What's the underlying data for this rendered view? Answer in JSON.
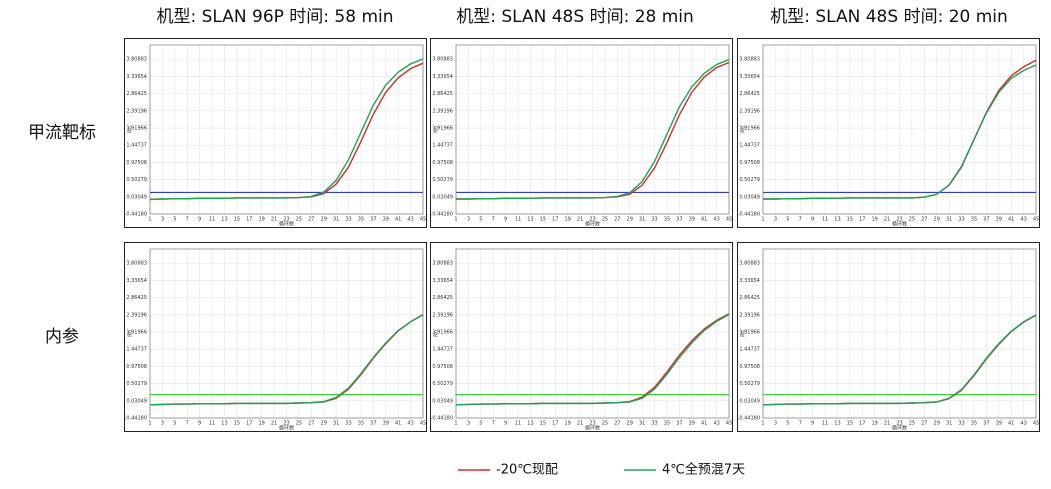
{
  "column_titles": [
    "机型: SLAN 96P  时间: 58 min",
    "机型: SLAN 48S  时间: 28 min",
    "机型: SLAN 48S  时间: 20 min"
  ],
  "row_labels": [
    "甲流靶标",
    "内参"
  ],
  "chart_data": [
    {
      "type": "line",
      "xlabel": "循环数",
      "ylabel": "Rn",
      "grid": true,
      "x": [
        1,
        3,
        5,
        7,
        9,
        11,
        13,
        15,
        17,
        19,
        21,
        23,
        25,
        27,
        29,
        31,
        33,
        35,
        37,
        39,
        41,
        43,
        45
      ],
      "xlim": [
        1,
        45
      ],
      "xticks": [
        1,
        3,
        5,
        7,
        9,
        11,
        13,
        15,
        17,
        19,
        21,
        23,
        25,
        27,
        29,
        31,
        33,
        35,
        37,
        39,
        41,
        43,
        45
      ],
      "ylim": [
        -0.4418,
        4.2
      ],
      "yticks": [
        {
          "value": -0.4418,
          "label": "-0.44180"
        },
        0.03049,
        0.50279,
        0.97508,
        1.44737,
        1.91966,
        2.39196,
        2.86425,
        3.33654,
        3.80883
      ],
      "threshold": {
        "value": 0.15,
        "color": "#2b3fc8"
      },
      "series": [
        {
          "name": "-20℃现配",
          "color": "#d62a2a",
          "values": [
            -0.04,
            -0.03,
            -0.02,
            -0.02,
            -0.01,
            -0.01,
            -0.01,
            0,
            0,
            0,
            0,
            0,
            0.01,
            0.03,
            0.12,
            0.38,
            0.85,
            1.55,
            2.3,
            2.9,
            3.3,
            3.55,
            3.7
          ]
        },
        {
          "name": "4℃全预混7天",
          "color": "#22a05a",
          "values": [
            -0.04,
            -0.03,
            -0.02,
            -0.02,
            -0.01,
            -0.01,
            -0.01,
            0,
            0,
            0,
            0,
            0,
            0.01,
            0.04,
            0.16,
            0.48,
            1.05,
            1.8,
            2.55,
            3.1,
            3.45,
            3.68,
            3.82
          ]
        }
      ]
    },
    {
      "type": "line",
      "xlabel": "循环数",
      "ylabel": "Rn",
      "grid": true,
      "x": [
        1,
        3,
        5,
        7,
        9,
        11,
        13,
        15,
        17,
        19,
        21,
        23,
        25,
        27,
        29,
        31,
        33,
        35,
        37,
        39,
        41,
        43,
        45
      ],
      "xlim": [
        1,
        45
      ],
      "xticks": [
        1,
        3,
        5,
        7,
        9,
        11,
        13,
        15,
        17,
        19,
        21,
        23,
        25,
        27,
        29,
        31,
        33,
        35,
        37,
        39,
        41,
        43,
        45
      ],
      "ylim": [
        -0.4418,
        4.2
      ],
      "yticks": [
        {
          "value": -0.4418,
          "label": "-0.44180"
        },
        0.03049,
        0.50279,
        0.97508,
        1.44737,
        1.91966,
        2.39196,
        2.86425,
        3.33654,
        3.80883
      ],
      "threshold": {
        "value": 0.15,
        "color": "#2b3fc8"
      },
      "series": [
        {
          "name": "-20℃现配",
          "color": "#d62a2a",
          "values": [
            -0.03,
            -0.03,
            -0.02,
            -0.02,
            -0.01,
            -0.01,
            -0.01,
            0,
            0,
            0,
            0,
            0,
            0.01,
            0.03,
            0.1,
            0.35,
            0.82,
            1.52,
            2.28,
            2.9,
            3.32,
            3.58,
            3.72
          ]
        },
        {
          "name": "4℃全预混7天",
          "color": "#22a05a",
          "values": [
            -0.03,
            -0.03,
            -0.02,
            -0.02,
            -0.01,
            -0.01,
            -0.01,
            0,
            0,
            0,
            0,
            0,
            0.01,
            0.04,
            0.14,
            0.45,
            1.0,
            1.75,
            2.5,
            3.05,
            3.42,
            3.66,
            3.8
          ]
        }
      ]
    },
    {
      "type": "line",
      "xlabel": "循环数",
      "ylabel": "Rn",
      "grid": true,
      "x": [
        1,
        3,
        5,
        7,
        9,
        11,
        13,
        15,
        17,
        19,
        21,
        23,
        25,
        27,
        29,
        31,
        33,
        35,
        37,
        39,
        41,
        43,
        45
      ],
      "xlim": [
        1,
        45
      ],
      "xticks": [
        1,
        3,
        5,
        7,
        9,
        11,
        13,
        15,
        17,
        19,
        21,
        23,
        25,
        27,
        29,
        31,
        33,
        35,
        37,
        39,
        41,
        43,
        45
      ],
      "ylim": [
        -0.4418,
        4.2
      ],
      "yticks": [
        {
          "value": -0.4418,
          "label": "-0.44180"
        },
        0.03049,
        0.50279,
        0.97508,
        1.44737,
        1.91966,
        2.39196,
        2.86425,
        3.33654,
        3.80883
      ],
      "threshold": {
        "value": 0.15,
        "color": "#2b3fc8"
      },
      "series": [
        {
          "name": "-20℃现配",
          "color": "#d62a2a",
          "values": [
            -0.03,
            -0.03,
            -0.02,
            -0.02,
            -0.01,
            -0.01,
            -0.01,
            0,
            0,
            0,
            0,
            0,
            0,
            0.02,
            0.1,
            0.35,
            0.85,
            1.6,
            2.35,
            2.95,
            3.35,
            3.6,
            3.78
          ]
        },
        {
          "name": "4℃全预混7天",
          "color": "#22a05a",
          "values": [
            -0.03,
            -0.03,
            -0.02,
            -0.02,
            -0.01,
            -0.01,
            -0.01,
            0,
            0,
            0,
            0,
            0,
            0,
            0.02,
            0.1,
            0.36,
            0.87,
            1.6,
            2.33,
            2.9,
            3.28,
            3.5,
            3.65
          ]
        }
      ]
    },
    {
      "type": "line",
      "xlabel": "循环数",
      "ylabel": "Rn",
      "grid": true,
      "x": [
        1,
        3,
        5,
        7,
        9,
        11,
        13,
        15,
        17,
        19,
        21,
        23,
        25,
        27,
        29,
        31,
        33,
        35,
        37,
        39,
        41,
        43,
        45
      ],
      "xlim": [
        1,
        45
      ],
      "xticks": [
        1,
        3,
        5,
        7,
        9,
        11,
        13,
        15,
        17,
        19,
        21,
        23,
        25,
        27,
        29,
        31,
        33,
        35,
        37,
        39,
        41,
        43,
        45
      ],
      "ylim": [
        -0.4418,
        4.2
      ],
      "yticks": [
        {
          "value": -0.4418,
          "label": "-0.44180"
        },
        0.03049,
        0.50279,
        0.97508,
        1.44737,
        1.91966,
        2.39196,
        2.86425,
        3.33654,
        3.80883
      ],
      "threshold": {
        "value": 0.2,
        "color": "#3ccc3c"
      },
      "series": [
        {
          "name": "-20℃现配",
          "color": "#d62a2a",
          "values": [
            -0.08,
            -0.07,
            -0.06,
            -0.06,
            -0.05,
            -0.05,
            -0.05,
            -0.04,
            -0.04,
            -0.04,
            -0.04,
            -0.04,
            -0.03,
            -0.02,
            0,
            0.1,
            0.35,
            0.75,
            1.2,
            1.6,
            1.95,
            2.2,
            2.4
          ]
        },
        {
          "name": "4℃全预混7天",
          "color": "#22a05a",
          "values": [
            -0.08,
            -0.07,
            -0.06,
            -0.06,
            -0.05,
            -0.05,
            -0.05,
            -0.04,
            -0.04,
            -0.04,
            -0.04,
            -0.04,
            -0.03,
            -0.02,
            0.01,
            0.12,
            0.38,
            0.78,
            1.22,
            1.62,
            1.96,
            2.2,
            2.39
          ]
        }
      ]
    },
    {
      "type": "line",
      "xlabel": "循环数",
      "ylabel": "Rn",
      "grid": true,
      "x": [
        1,
        3,
        5,
        7,
        9,
        11,
        13,
        15,
        17,
        19,
        21,
        23,
        25,
        27,
        29,
        31,
        33,
        35,
        37,
        39,
        41,
        43,
        45
      ],
      "xlim": [
        1,
        45
      ],
      "xticks": [
        1,
        3,
        5,
        7,
        9,
        11,
        13,
        15,
        17,
        19,
        21,
        23,
        25,
        27,
        29,
        31,
        33,
        35,
        37,
        39,
        41,
        43,
        45
      ],
      "ylim": [
        -0.4418,
        4.2
      ],
      "yticks": [
        {
          "value": -0.4418,
          "label": "-0.44180"
        },
        0.03049,
        0.50279,
        0.97508,
        1.44737,
        1.91966,
        2.39196,
        2.86425,
        3.33654,
        3.80883
      ],
      "threshold": {
        "value": 0.2,
        "color": "#3ccc3c"
      },
      "series": [
        {
          "name": "-20℃现配",
          "color": "#d62a2a",
          "values": [
            -0.08,
            -0.07,
            -0.06,
            -0.06,
            -0.05,
            -0.05,
            -0.05,
            -0.04,
            -0.04,
            -0.04,
            -0.04,
            -0.04,
            -0.03,
            -0.02,
            0.01,
            0.13,
            0.4,
            0.82,
            1.28,
            1.68,
            2.0,
            2.24,
            2.42
          ]
        },
        {
          "name": "4℃全预混7天",
          "color": "#22a05a",
          "values": [
            -0.08,
            -0.07,
            -0.06,
            -0.06,
            -0.05,
            -0.05,
            -0.05,
            -0.04,
            -0.04,
            -0.04,
            -0.04,
            -0.04,
            -0.03,
            -0.02,
            0,
            0.1,
            0.35,
            0.76,
            1.22,
            1.62,
            1.96,
            2.21,
            2.4
          ]
        }
      ]
    },
    {
      "type": "line",
      "xlabel": "循环数",
      "ylabel": "Rn",
      "grid": true,
      "x": [
        1,
        3,
        5,
        7,
        9,
        11,
        13,
        15,
        17,
        19,
        21,
        23,
        25,
        27,
        29,
        31,
        33,
        35,
        37,
        39,
        41,
        43,
        45
      ],
      "xlim": [
        1,
        45
      ],
      "xticks": [
        1,
        3,
        5,
        7,
        9,
        11,
        13,
        15,
        17,
        19,
        21,
        23,
        25,
        27,
        29,
        31,
        33,
        35,
        37,
        39,
        41,
        43,
        45
      ],
      "ylim": [
        -0.4418,
        4.2
      ],
      "yticks": [
        {
          "value": -0.4418,
          "label": "-0.44180"
        },
        0.03049,
        0.50279,
        0.97508,
        1.44737,
        1.91966,
        2.39196,
        2.86425,
        3.33654,
        3.80883
      ],
      "threshold": {
        "value": 0.2,
        "color": "#3ccc3c"
      },
      "series": [
        {
          "name": "-20℃现配",
          "color": "#d62a2a",
          "values": [
            -0.08,
            -0.07,
            -0.06,
            -0.06,
            -0.05,
            -0.05,
            -0.05,
            -0.04,
            -0.04,
            -0.04,
            -0.04,
            -0.04,
            -0.03,
            -0.02,
            0,
            0.09,
            0.32,
            0.72,
            1.18,
            1.58,
            1.93,
            2.19,
            2.38
          ]
        },
        {
          "name": "4℃全预混7天",
          "color": "#22a05a",
          "values": [
            -0.08,
            -0.07,
            -0.06,
            -0.06,
            -0.05,
            -0.05,
            -0.05,
            -0.04,
            -0.04,
            -0.04,
            -0.04,
            -0.04,
            -0.03,
            -0.02,
            0,
            0.1,
            0.34,
            0.74,
            1.2,
            1.6,
            1.94,
            2.2,
            2.39
          ]
        }
      ]
    }
  ]
}
